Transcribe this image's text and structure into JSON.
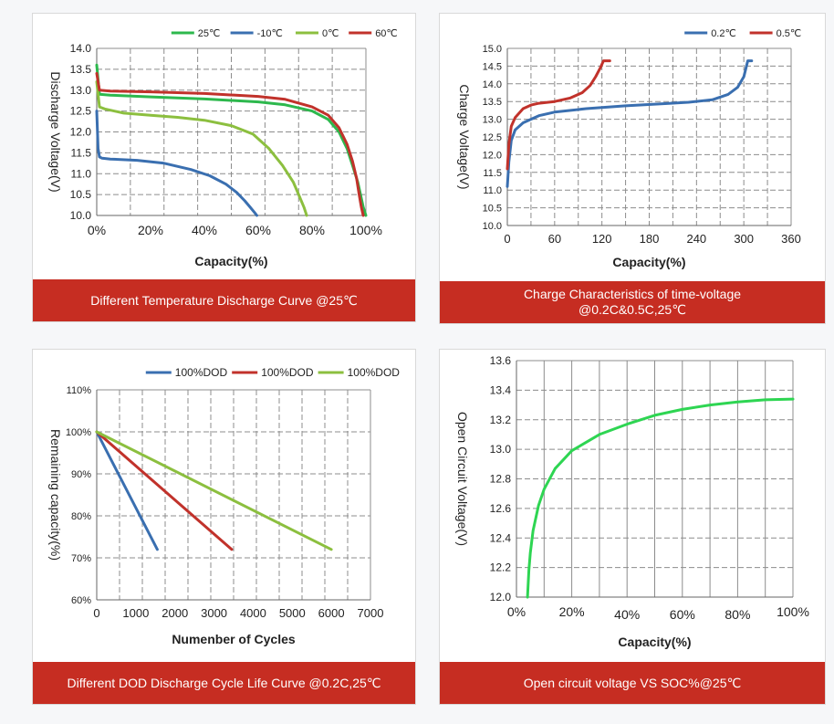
{
  "chart_data": [
    {
      "type": "line",
      "ylabel": "Discharge Voltage(V)",
      "xlabel": "Capacity(%)",
      "caption": "Different Temperature Discharge Curve @25℃",
      "xlim": [
        0,
        100
      ],
      "ylim": [
        10.0,
        14.0
      ],
      "xticks": [
        0,
        20,
        40,
        60,
        80,
        100
      ],
      "xtick_labels": [
        "0%",
        "20%",
        "40%",
        "60%",
        "80%",
        "100%"
      ],
      "yticks": [
        10.0,
        10.5,
        11.0,
        11.5,
        12.0,
        12.5,
        13.0,
        13.5,
        14.0
      ],
      "ytick_labels": [
        "10.0",
        "10.5",
        "11.0",
        "11.5",
        "12.0",
        "12.5",
        "13.0",
        "13.5",
        "14.0"
      ],
      "grid": true,
      "legend_position": "top-right",
      "series": [
        {
          "name": "25℃",
          "color": "#2db84d",
          "x": [
            0,
            1,
            5,
            20,
            40,
            60,
            70,
            80,
            86,
            90,
            93,
            95,
            97,
            98,
            99,
            100
          ],
          "y": [
            13.6,
            12.9,
            12.88,
            12.84,
            12.79,
            12.72,
            12.65,
            12.5,
            12.3,
            12.0,
            11.6,
            11.2,
            10.8,
            10.5,
            10.2,
            10.0
          ]
        },
        {
          "name": "-10℃",
          "color": "#3a6fb0",
          "x": [
            0,
            0.5,
            1,
            2,
            5,
            15,
            25,
            35,
            42,
            48,
            52,
            55,
            57,
            58.5,
            59.5
          ],
          "y": [
            12.5,
            11.6,
            11.4,
            11.37,
            11.35,
            11.32,
            11.25,
            11.1,
            10.95,
            10.75,
            10.55,
            10.35,
            10.2,
            10.08,
            10.0
          ]
        },
        {
          "name": "0℃",
          "color": "#8cbf3f",
          "x": [
            0,
            1,
            3,
            10,
            20,
            30,
            40,
            50,
            58,
            64,
            69,
            73,
            75,
            77,
            78
          ],
          "y": [
            13.2,
            12.6,
            12.55,
            12.45,
            12.4,
            12.35,
            12.28,
            12.15,
            11.95,
            11.6,
            11.2,
            10.8,
            10.5,
            10.2,
            10.0
          ]
        },
        {
          "name": "60℃",
          "color": "#c1322b",
          "x": [
            0,
            1,
            5,
            20,
            40,
            60,
            70,
            80,
            86,
            90,
            93,
            95,
            96.5,
            97.5,
            98.3,
            99
          ],
          "y": [
            13.4,
            13.0,
            12.98,
            12.96,
            12.92,
            12.85,
            12.78,
            12.6,
            12.4,
            12.1,
            11.7,
            11.3,
            10.9,
            10.5,
            10.2,
            10.0
          ]
        }
      ]
    },
    {
      "type": "line",
      "ylabel": "Charge Voltage(V)",
      "xlabel": "Capacity(%)",
      "caption_lines": [
        "Charge Characteristics of time-voltage",
        "@0.2C&0.5C,25℃"
      ],
      "xlim": [
        0,
        360
      ],
      "ylim": [
        10.0,
        15.0
      ],
      "xticks": [
        0,
        60,
        120,
        180,
        240,
        300,
        360
      ],
      "xtick_labels": [
        "0",
        "60",
        "120",
        "180",
        "240",
        "300",
        "360"
      ],
      "yticks": [
        10.0,
        10.5,
        11.0,
        11.5,
        12.0,
        12.5,
        13.0,
        13.5,
        14.0,
        14.5,
        15.0
      ],
      "ytick_labels": [
        "10.0",
        "10.5",
        "11.0",
        "11.5",
        "12.0",
        "12.5",
        "13.0",
        "13.5",
        "14.0",
        "14.5",
        "15.0"
      ],
      "grid": true,
      "legend_position": "top-right",
      "series": [
        {
          "name": "0.2℃",
          "color": "#3a6fb0",
          "x": [
            0,
            2,
            5,
            10,
            20,
            40,
            60,
            100,
            150,
            200,
            230,
            260,
            280,
            292,
            300,
            305,
            310
          ],
          "y": [
            11.1,
            11.8,
            12.4,
            12.7,
            12.9,
            13.1,
            13.2,
            13.3,
            13.38,
            13.44,
            13.48,
            13.55,
            13.7,
            13.9,
            14.2,
            14.65,
            14.65
          ]
        },
        {
          "name": "0.5℃",
          "color": "#c1322b",
          "x": [
            0,
            2,
            5,
            10,
            20,
            30,
            40,
            60,
            80,
            95,
            105,
            112,
            118,
            122,
            125,
            130
          ],
          "y": [
            11.6,
            12.3,
            12.8,
            13.05,
            13.3,
            13.4,
            13.45,
            13.5,
            13.6,
            13.75,
            13.95,
            14.2,
            14.45,
            14.65,
            14.65,
            14.65
          ]
        }
      ]
    },
    {
      "type": "line",
      "ylabel": "Remaining capacity(%)",
      "xlabel": "Numenber of Cycles",
      "caption": "Different DOD Discharge Cycle Life Curve @0.2C,25℃",
      "xlim": [
        0,
        7000
      ],
      "ylim": [
        60,
        110
      ],
      "xticks": [
        0,
        1000,
        2000,
        3000,
        4000,
        5000,
        6000,
        7000
      ],
      "xtick_labels": [
        "0",
        "1000",
        "2000",
        "3000",
        "4000",
        "5000",
        "6000",
        "7000"
      ],
      "yticks": [
        60,
        70,
        80,
        90,
        100,
        110
      ],
      "ytick_labels": [
        "60%",
        "70%",
        "80%",
        "90%",
        "100%",
        "110%"
      ],
      "grid": true,
      "legend_position": "top",
      "series": [
        {
          "name": "100%DOD",
          "color": "#3a6fb0",
          "x": [
            0,
            1550
          ],
          "y": [
            100,
            72
          ]
        },
        {
          "name": "100%DOD",
          "color": "#c1322b",
          "x": [
            0,
            3450
          ],
          "y": [
            100,
            72
          ]
        },
        {
          "name": "100%DOD",
          "color": "#8cbf3f",
          "x": [
            0,
            6000
          ],
          "y": [
            100,
            72
          ]
        }
      ]
    },
    {
      "type": "line",
      "ylabel": "Open Circuit Voltage(V)",
      "xlabel": "Capacity(%)",
      "caption": "Open circuit voltage VS SOC%@25℃",
      "xlim": [
        0,
        100
      ],
      "ylim": [
        12.0,
        13.6
      ],
      "xticks": [
        0,
        20,
        40,
        60,
        80,
        100
      ],
      "xtick_labels": [
        "0%",
        "20%",
        "40%",
        "60%",
        "80%",
        "100%"
      ],
      "yticks": [
        12.0,
        12.2,
        12.4,
        12.6,
        12.8,
        13.0,
        13.2,
        13.4,
        13.6
      ],
      "ytick_labels": [
        "12.0",
        "12.2",
        "12.4",
        "12.6",
        "12.8",
        "13.0",
        "13.2",
        "13.4",
        "13.6"
      ],
      "grid": true,
      "series": [
        {
          "color": "#2ed552",
          "x": [
            4,
            4.5,
            5,
            6,
            8,
            10,
            14,
            20,
            30,
            40,
            50,
            60,
            70,
            80,
            90,
            100
          ],
          "y": [
            12.0,
            12.18,
            12.3,
            12.45,
            12.62,
            12.73,
            12.87,
            12.99,
            13.1,
            13.17,
            13.23,
            13.27,
            13.3,
            13.32,
            13.335,
            13.34
          ]
        }
      ]
    }
  ]
}
